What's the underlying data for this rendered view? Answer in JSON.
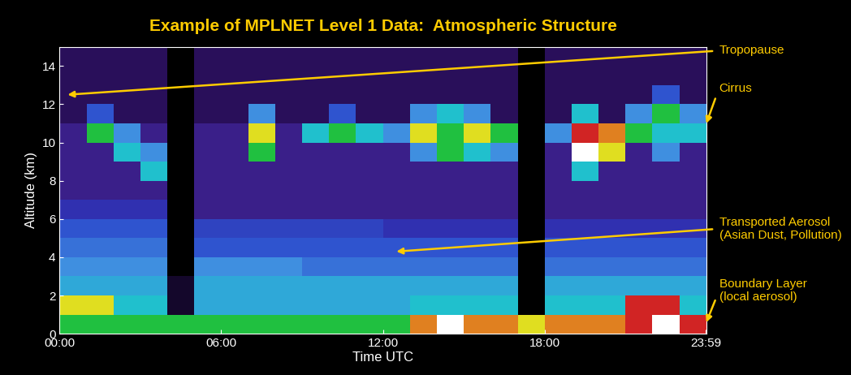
{
  "chart_data": {
    "type": "heatmap",
    "title": "Example of MPLNET Level 1 Data:  Atmospheric Structure",
    "xlabel": "Time UTC",
    "ylabel": "Altitude (km)",
    "xlim": [
      0,
      24
    ],
    "ylim": [
      0,
      15
    ],
    "xticks": [
      {
        "value": 0,
        "label": "00:00"
      },
      {
        "value": 6,
        "label": "06:00"
      },
      {
        "value": 12,
        "label": "12:00"
      },
      {
        "value": 18,
        "label": "18:00"
      },
      {
        "value": 23.983,
        "label": "23:59"
      }
    ],
    "yticks": [
      0,
      2,
      4,
      6,
      8,
      10,
      12,
      14
    ],
    "x_edges": [
      0,
      1,
      2,
      3,
      4,
      5,
      6,
      7,
      8,
      9,
      10,
      11,
      12,
      13,
      14,
      15,
      16,
      17,
      18,
      19,
      20,
      21,
      22,
      23,
      24
    ],
    "y_edges": [
      0,
      1,
      2,
      3,
      4,
      5,
      6,
      7,
      8,
      9,
      10,
      11,
      12,
      13,
      14,
      15
    ],
    "color_range": [
      0,
      10
    ],
    "cells": [
      [
        6,
        6,
        6,
        6,
        6,
        6,
        6,
        6,
        6,
        6,
        6,
        6,
        6,
        8,
        10,
        8,
        8,
        7,
        8,
        8,
        8,
        9,
        10,
        9
      ],
      [
        7,
        7,
        5,
        5,
        0.5,
        4.5,
        4.5,
        4.5,
        4.5,
        4.5,
        4.5,
        4.5,
        4.5,
        5,
        5,
        5,
        5,
        0,
        5,
        5,
        5,
        9,
        9,
        5
      ],
      [
        4.5,
        4.5,
        4.5,
        4.5,
        0.5,
        4.5,
        4.5,
        4.5,
        4.5,
        4.5,
        4.5,
        4.5,
        4.5,
        4.5,
        4.5,
        4.5,
        4.5,
        0,
        4.5,
        4.5,
        4.5,
        4.5,
        4.5,
        4.5
      ],
      [
        4,
        4,
        4,
        4,
        0,
        4,
        4,
        4,
        4,
        3.5,
        3.5,
        3.5,
        3.5,
        3.5,
        3.5,
        3.5,
        3.5,
        0,
        3.5,
        3.5,
        3.5,
        3.5,
        3.5,
        3.5
      ],
      [
        3.5,
        3.5,
        3.5,
        3.5,
        0,
        3,
        3,
        3,
        3,
        3,
        3,
        3,
        3,
        3,
        3,
        3,
        3,
        0,
        3,
        3,
        3,
        3,
        3,
        3
      ],
      [
        3,
        3,
        3,
        3,
        0,
        2.5,
        2.5,
        2.5,
        2.5,
        2.5,
        2.5,
        2.5,
        2,
        2,
        2,
        2,
        2,
        0,
        2,
        2,
        2,
        2,
        2,
        2
      ],
      [
        2,
        2,
        2,
        2,
        0,
        1.5,
        1.5,
        1.5,
        1.5,
        1.5,
        1.5,
        1.5,
        1.5,
        1.5,
        1.5,
        1.5,
        1.5,
        0,
        1.5,
        1.5,
        1.5,
        1.5,
        1.5,
        1.5
      ],
      [
        1.5,
        1.5,
        1.5,
        1.5,
        0,
        1.5,
        1.5,
        1.5,
        1.5,
        1.5,
        1.5,
        1.5,
        1.5,
        1.5,
        1.5,
        1.5,
        1.5,
        0,
        1.5,
        1.5,
        1.5,
        1.5,
        1.5,
        1.5
      ],
      [
        1.5,
        1.5,
        1.5,
        5,
        0,
        1.5,
        1.5,
        1.5,
        1.5,
        1.5,
        1.5,
        1.5,
        1.5,
        1.5,
        1.5,
        1.5,
        1.5,
        0,
        1.5,
        5,
        1.5,
        1.5,
        1.5,
        1.5
      ],
      [
        1.5,
        1.5,
        5,
        4,
        0,
        1.5,
        1.5,
        6,
        1.5,
        1.5,
        1.5,
        1.5,
        1.5,
        4,
        6,
        5,
        4,
        0,
        1.5,
        10,
        7,
        1.5,
        4,
        1.5
      ],
      [
        1.5,
        6,
        4,
        1.5,
        0,
        1.5,
        1.5,
        7,
        1.5,
        5,
        6,
        5,
        4,
        7,
        6,
        7,
        6,
        0,
        4,
        9,
        8,
        6,
        5,
        5
      ],
      [
        1,
        3,
        1,
        1,
        0,
        1,
        1,
        4,
        1,
        1,
        3,
        1,
        1,
        4,
        5,
        4,
        1,
        0,
        1,
        5,
        1,
        4,
        6,
        4
      ],
      [
        1,
        1,
        1,
        1,
        0,
        1,
        1,
        1,
        1,
        1,
        1,
        1,
        1,
        1,
        1,
        1,
        1,
        0,
        1,
        1,
        1,
        1,
        3,
        1
      ],
      [
        1,
        1,
        1,
        1,
        0,
        1,
        1,
        1,
        1,
        1,
        1,
        1,
        1,
        1,
        1,
        1,
        1,
        0,
        1,
        1,
        1,
        1,
        1,
        1
      ],
      [
        1,
        1,
        1,
        1,
        0,
        1,
        1,
        1,
        1,
        1,
        1,
        1,
        1,
        1,
        1,
        1,
        1,
        0,
        1,
        1,
        1,
        1,
        1,
        1
      ]
    ],
    "annotations": [
      {
        "text": "Tropopause",
        "x": 0.3,
        "y": 12.5
      },
      {
        "text": "Cirrus",
        "x": 24,
        "y": 11
      },
      {
        "text": "Transported Aerosol\n(Asian Dust, Pollution)",
        "x": 12.5,
        "y": 4.3
      },
      {
        "text": "Boundary Layer\n(local aerosol)",
        "x": 24,
        "y": 0.6
      }
    ]
  }
}
